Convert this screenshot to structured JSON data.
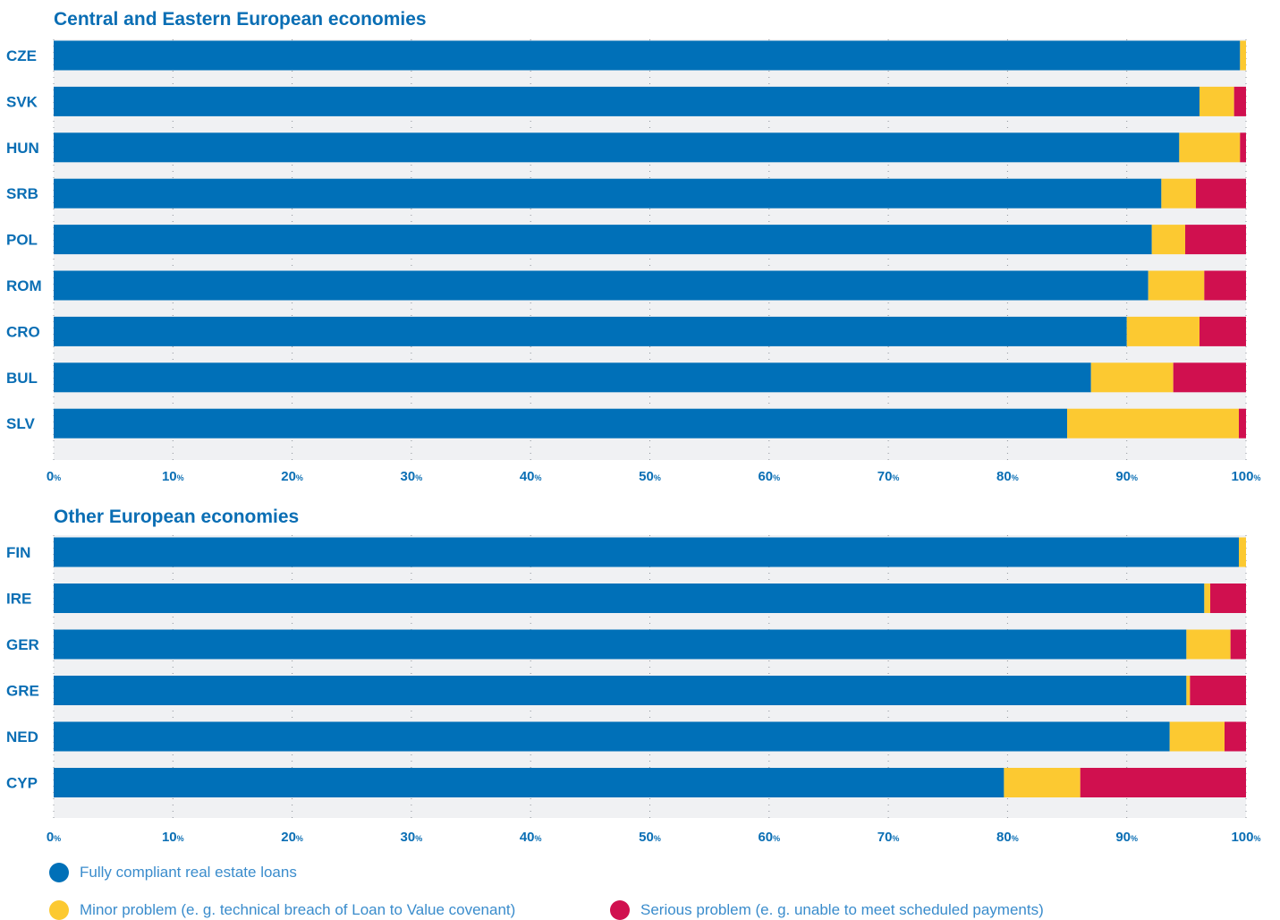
{
  "colors": {
    "compliant": "#0070b8",
    "minor": "#fcc931",
    "serious": "#d0104f",
    "accent": "#0a6eb4",
    "track": "#f0f1f3"
  },
  "legend": {
    "compliant": "Fully compliant real estate loans",
    "minor": "Minor problem (e. g. technical breach of Loan to Value covenant)",
    "serious": "Serious problem (e. g. unable to meet scheduled payments)"
  },
  "chart_data": [
    {
      "type": "bar",
      "orientation": "horizontal",
      "stacked": true,
      "title": "Central and Eastern European economies",
      "categories": [
        "CZE",
        "SVK",
        "HUN",
        "SRB",
        "POL",
        "ROM",
        "CRO",
        "BUL",
        "SLV"
      ],
      "series": [
        {
          "name": "Fully compliant real estate loans",
          "values": [
            99.5,
            96.1,
            94.4,
            92.9,
            92.1,
            91.8,
            90.0,
            87.0,
            85.0
          ]
        },
        {
          "name": "Minor problem (e. g. technical breach of Loan to Value covenant)",
          "values": [
            0.5,
            2.9,
            5.1,
            2.9,
            2.8,
            4.7,
            6.1,
            6.9,
            14.4
          ]
        },
        {
          "name": "Serious problem (e. g. unable to meet scheduled payments)",
          "values": [
            0.0,
            1.0,
            0.5,
            4.2,
            5.1,
            3.5,
            3.9,
            6.1,
            0.6
          ]
        }
      ],
      "xlim": [
        0,
        100
      ],
      "xticks": [
        "0",
        "10",
        "20",
        "30",
        "40",
        "50",
        "60",
        "70",
        "80",
        "90",
        "100"
      ],
      "tick_unit": "%",
      "grid": true
    },
    {
      "type": "bar",
      "orientation": "horizontal",
      "stacked": true,
      "title": "Other European economies",
      "categories": [
        "FIN",
        "IRE",
        "GER",
        "GRE",
        "NED",
        "CYP"
      ],
      "series": [
        {
          "name": "Fully compliant real estate loans",
          "values": [
            99.4,
            96.5,
            95.0,
            95.0,
            93.6,
            79.7
          ]
        },
        {
          "name": "Minor problem (e. g. technical breach of Loan to Value covenant)",
          "values": [
            0.6,
            0.5,
            3.7,
            0.3,
            4.6,
            6.4
          ]
        },
        {
          "name": "Serious problem (e. g. unable to meet scheduled payments)",
          "values": [
            0.0,
            3.0,
            1.3,
            4.7,
            1.8,
            13.9
          ]
        }
      ],
      "xlim": [
        0,
        100
      ],
      "xticks": [
        "0",
        "10",
        "20",
        "30",
        "40",
        "50",
        "60",
        "70",
        "80",
        "90",
        "100"
      ],
      "tick_unit": "%",
      "grid": true
    }
  ]
}
